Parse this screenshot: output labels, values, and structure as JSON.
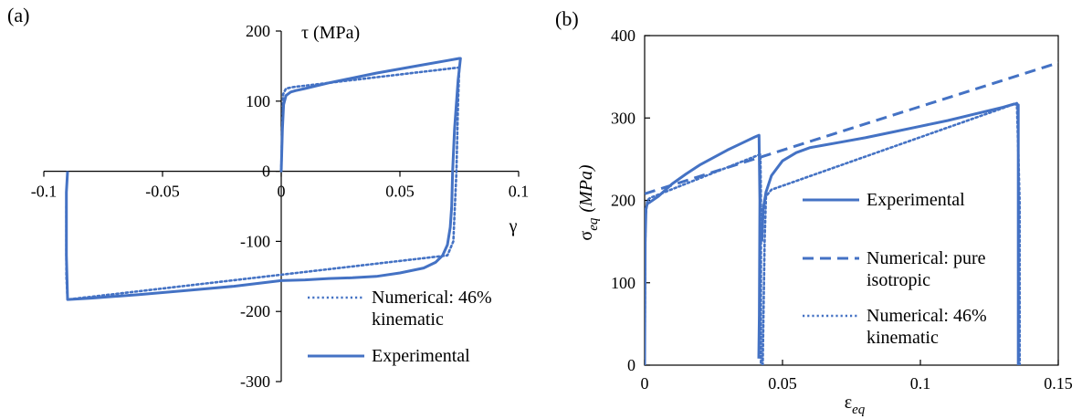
{
  "colors": {
    "series": "#4472c4",
    "axis": "#000000",
    "frame": "#000000"
  },
  "chart_data": [
    {
      "type": "line",
      "panel_label": "(a)",
      "xlabel": "γ",
      "ylabel": "τ (MPa)",
      "xlim": [
        -0.1,
        0.1
      ],
      "ylim": [
        -300,
        200
      ],
      "xticks": [
        -0.1,
        -0.05,
        0,
        0.05,
        0.1
      ],
      "xtick_labels": [
        "-0.1",
        "-0.05",
        "0",
        "0.05",
        "0.1"
      ],
      "yticks": [
        -300,
        -200,
        -100,
        0,
        100,
        200
      ],
      "ytick_labels": [
        "-300",
        "-200",
        "-100",
        "0",
        "100",
        "200"
      ],
      "grid": false,
      "legend_position": "bottom-right",
      "series": [
        {
          "name": "Numerical: 46% kinematic",
          "style": "dotted",
          "x": [
            0,
            0.0008,
            0.002,
            0.005,
            0.075,
            0.0745,
            0.0738,
            0.0725,
            0.07,
            -0.09,
            -0.0905,
            -0.0905
          ],
          "y": [
            0,
            110,
            118,
            120,
            148,
            100,
            0,
            -100,
            -120,
            -183,
            -150,
            -50
          ]
        },
        {
          "name": "Experimental",
          "style": "solid",
          "x": [
            0,
            0.0005,
            0.001,
            0.002,
            0.004,
            0.006,
            0.01,
            0.02,
            0.03,
            0.04,
            0.05,
            0.06,
            0.07,
            0.075,
            0.0755,
            0.0745,
            0.073,
            0.0722,
            0.0718,
            0.0712,
            0.07,
            0.068,
            0.065,
            0.06,
            0.05,
            0.04,
            0.03,
            0.02,
            0.01,
            0.0,
            -0.02,
            -0.04,
            -0.06,
            -0.08,
            -0.09,
            -0.0905,
            -0.0905,
            -0.09
          ],
          "y": [
            0,
            60,
            95,
            108,
            113,
            115,
            118,
            126,
            133,
            140,
            146,
            152,
            158,
            161,
            161,
            130,
            60,
            0,
            -50,
            -80,
            -105,
            -120,
            -130,
            -138,
            -145,
            -150,
            -152,
            -153,
            -155,
            -156,
            -164,
            -170,
            -176,
            -181,
            -183,
            -120,
            -30,
            0
          ]
        }
      ]
    },
    {
      "type": "line",
      "panel_label": "(b)",
      "xlabel": "ε",
      "xlabel_sub": "eq",
      "ylabel": "σ",
      "ylabel_sub": "eq",
      "ylabel_unit": "(MPa)",
      "xlim": [
        0,
        0.15
      ],
      "ylim": [
        0,
        400
      ],
      "xticks": [
        0,
        0.05,
        0.1,
        0.15
      ],
      "xtick_labels": [
        "0",
        "0.05",
        "0.1",
        "0.15"
      ],
      "yticks": [
        0,
        100,
        200,
        300,
        400
      ],
      "ytick_labels": [
        "0",
        "100",
        "200",
        "300",
        "400"
      ],
      "grid": false,
      "legend_position": "center-right",
      "series": [
        {
          "name": "Experimental",
          "style": "solid",
          "segments": [
            {
              "x": [
                0,
                0.0002,
                0.0005,
                0.001,
                0.002,
                0.005,
                0.01,
                0.015,
                0.02,
                0.025,
                0.03,
                0.035,
                0.04,
                0.0415,
                0.0418,
                0.0416,
                0.0414
              ],
              "y": [
                0,
                150,
                190,
                196,
                198,
                205,
                220,
                232,
                243,
                252,
                261,
                269,
                277,
                279,
                200,
                60,
                8
              ]
            },
            {
              "x": [
                0.0425,
                0.043,
                0.044,
                0.046,
                0.05,
                0.055,
                0.06,
                0.065,
                0.07,
                0.08,
                0.09,
                0.1,
                0.11,
                0.12,
                0.13,
                0.134,
                0.1355,
                0.1355
              ],
              "y": [
                150,
                190,
                210,
                230,
                248,
                258,
                264,
                267,
                270,
                276,
                283,
                290,
                297,
                305,
                313,
                317,
                316,
                0
              ]
            }
          ]
        },
        {
          "name": "Numerical: pure isotropic",
          "style": "dashed",
          "segments": [
            {
              "x": [
                0,
                0.15
              ],
              "y": [
                208,
                367
              ]
            }
          ]
        },
        {
          "name": "Numerical: 46% kinematic",
          "style": "dotted",
          "segments": [
            {
              "x": [
                0,
                0.0003,
                0.001,
                0.002,
                0.042,
                0.0422,
                0.0422
              ],
              "y": [
                0,
                180,
                200,
                203,
                256,
                200,
                0
              ]
            },
            {
              "x": [
                0.0428,
                0.0435,
                0.044,
                0.046,
                0.135,
                0.136,
                0.136
              ],
              "y": [
                0,
                150,
                205,
                213,
                318,
                200,
                0
              ]
            }
          ]
        }
      ]
    }
  ],
  "legend_a": [
    {
      "lines": [
        "Numerical: 46%",
        "kinematic"
      ],
      "style": "dotted"
    },
    {
      "lines": [
        "Experimental"
      ],
      "style": "solid"
    }
  ],
  "legend_b": [
    {
      "lines": [
        "Experimental"
      ],
      "style": "solid"
    },
    {
      "lines": [
        "Numerical: pure",
        "isotropic"
      ],
      "style": "dashed"
    },
    {
      "lines": [
        "Numerical: 46%",
        "kinematic"
      ],
      "style": "dotted"
    }
  ]
}
